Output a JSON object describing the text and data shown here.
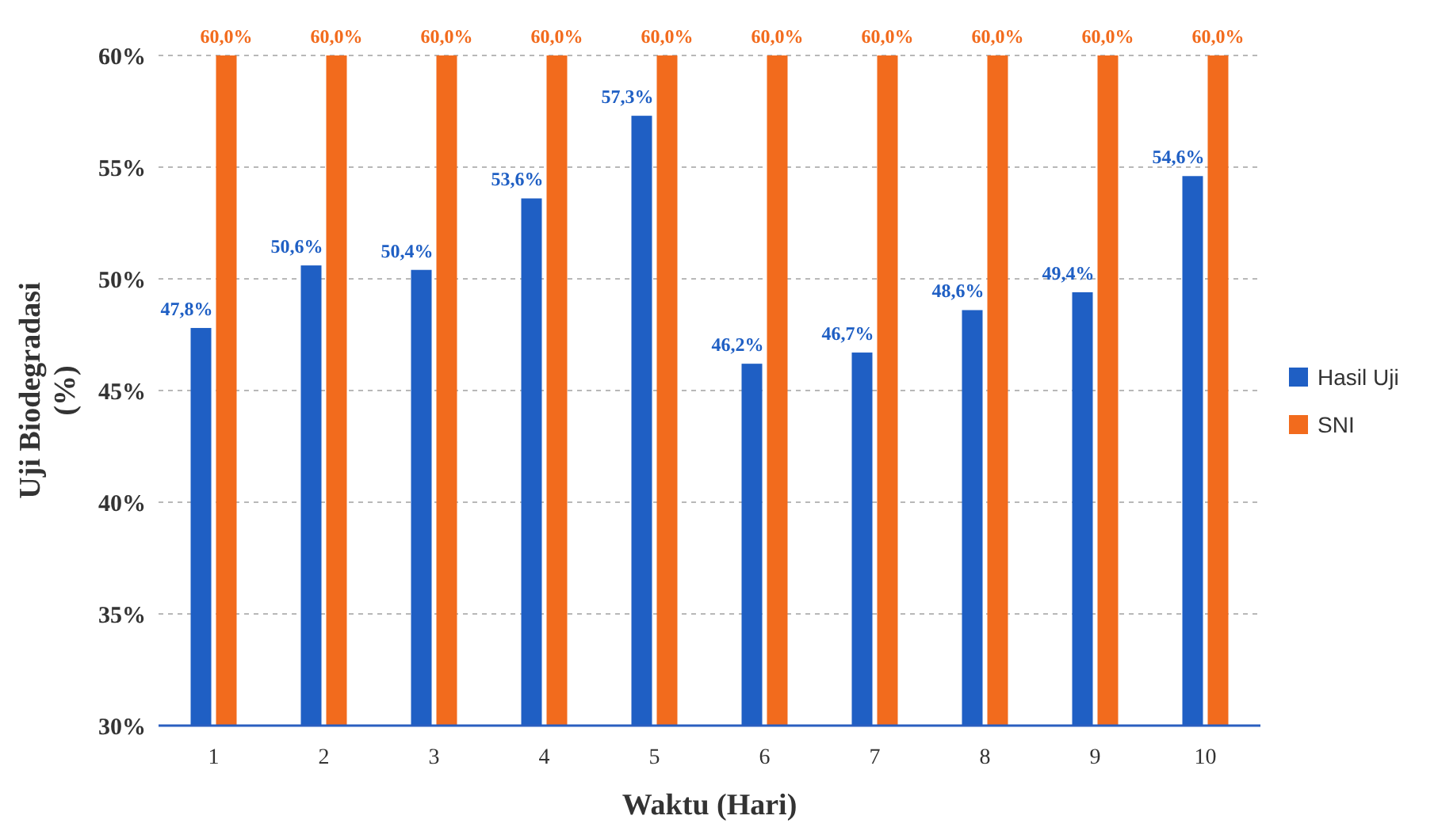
{
  "chart_data": {
    "type": "bar",
    "xlabel": "Waktu (Hari)",
    "ylabel": "Uji Biodegradasi\n(%)",
    "categories": [
      "1",
      "2",
      "3",
      "4",
      "5",
      "6",
      "7",
      "8",
      "9",
      "10"
    ],
    "series": [
      {
        "name": "Hasil Uji",
        "color": "#1f5fc4",
        "values": [
          47.8,
          50.6,
          50.4,
          53.6,
          57.3,
          46.2,
          46.7,
          48.6,
          49.4,
          54.6
        ],
        "value_labels": [
          "47,8%",
          "50,6%",
          "50,4%",
          "53,6%",
          "57,3%",
          "46,2%",
          "46,7%",
          "48,6%",
          "49,4%",
          "54,6%"
        ]
      },
      {
        "name": "SNI",
        "color": "#f26b1d",
        "values": [
          60,
          60,
          60,
          60,
          60,
          60,
          60,
          60,
          60,
          60
        ],
        "value_labels": [
          "60,0%",
          "60,0%",
          "60,0%",
          "60,0%",
          "60,0%",
          "60,0%",
          "60,0%",
          "60,0%",
          "60,0%",
          "60,0%"
        ]
      }
    ],
    "ylim": [
      30,
      60
    ],
    "yticks": [
      {
        "value": 30,
        "label": "30%"
      },
      {
        "value": 35,
        "label": "35%"
      },
      {
        "value": 40,
        "label": "40%"
      },
      {
        "value": 45,
        "label": "45%"
      },
      {
        "value": 50,
        "label": "50%"
      },
      {
        "value": 55,
        "label": "55%"
      },
      {
        "value": 60,
        "label": "60%"
      }
    ],
    "grid": "y",
    "legend": "right"
  }
}
